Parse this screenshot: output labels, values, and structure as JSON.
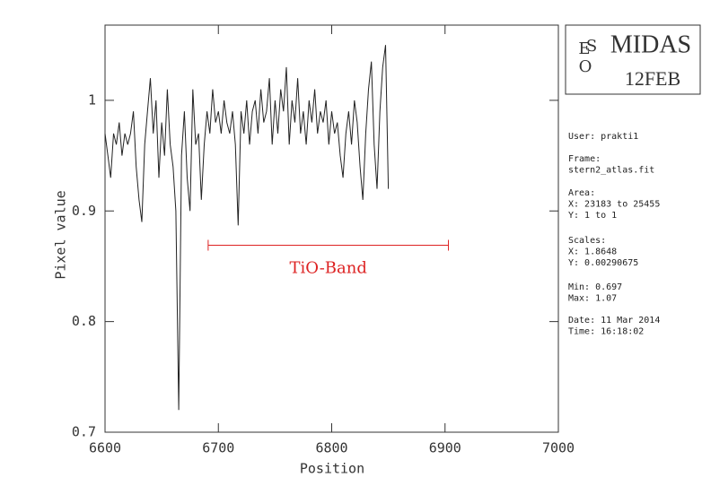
{
  "chart_data": {
    "type": "line",
    "xlabel": "Position",
    "ylabel": "Pixel value",
    "xlim": [
      6600,
      7000
    ],
    "ylim": [
      0.7,
      1.068
    ],
    "xticks": [
      6600,
      6700,
      6800,
      6900,
      7000
    ],
    "yticks": [
      0.7,
      0.8,
      0.9,
      1
    ],
    "color": "#222222",
    "x": [
      6600,
      6602.5,
      6605,
      6607.5,
      6610,
      6612.5,
      6615,
      6617.5,
      6620,
      6622.5,
      6625,
      6627.5,
      6630,
      6632.5,
      6635,
      6637.5,
      6640,
      6642.5,
      6645,
      6647.5,
      6650,
      6652.5,
      6655,
      6657.5,
      6660,
      6662.5,
      6665,
      6667.5,
      6670,
      6672.5,
      6675,
      6677.5,
      6680,
      6682.5,
      6685,
      6687.5,
      6690,
      6692.5,
      6695,
      6697.5,
      6700,
      6702.5,
      6705,
      6707.5,
      6710,
      6712.5,
      6715,
      6717.5,
      6720,
      6722.5,
      6725,
      6727.5,
      6730,
      6732.5,
      6735,
      6737.5,
      6740,
      6742.5,
      6745,
      6747.5,
      6750,
      6752.5,
      6755,
      6757.5,
      6760,
      6762.5,
      6765,
      6767.5,
      6770,
      6772.5,
      6775,
      6777.5,
      6780,
      6782.5,
      6785,
      6787.5,
      6790,
      6792.5,
      6795,
      6797.5,
      6800,
      6802.5,
      6805,
      6807.5,
      6810,
      6812.5,
      6815,
      6817.5,
      6820,
      6822.5,
      6825,
      6827.5,
      6830,
      6832.5,
      6835,
      6837.5,
      6840,
      6842.5,
      6845,
      6847.5,
      6850
    ],
    "values": [
      0.97,
      0.95,
      0.93,
      0.97,
      0.96,
      0.98,
      0.95,
      0.97,
      0.96,
      0.97,
      0.99,
      0.94,
      0.91,
      0.89,
      0.96,
      0.99,
      1.02,
      0.97,
      1.0,
      0.93,
      0.98,
      0.95,
      1.01,
      0.96,
      0.94,
      0.9,
      0.72,
      0.95,
      0.99,
      0.93,
      0.9,
      1.01,
      0.96,
      0.97,
      0.91,
      0.96,
      0.99,
      0.97,
      1.01,
      0.98,
      0.99,
      0.97,
      1.0,
      0.98,
      0.97,
      0.99,
      0.96,
      0.887,
      0.99,
      0.97,
      1.0,
      0.96,
      0.99,
      1.0,
      0.97,
      1.01,
      0.98,
      0.99,
      1.02,
      0.96,
      1.0,
      0.97,
      1.01,
      0.99,
      1.03,
      0.96,
      1.0,
      0.98,
      1.02,
      0.97,
      0.99,
      0.96,
      1.0,
      0.98,
      1.01,
      0.97,
      0.99,
      0.98,
      1.0,
      0.96,
      0.99,
      0.97,
      0.98,
      0.95,
      0.93,
      0.97,
      0.99,
      0.96,
      1.0,
      0.98,
      0.94,
      0.91,
      0.97,
      1.01,
      1.035,
      0.96,
      0.92,
      0.99,
      1.03,
      1.05,
      0.92
    ],
    "annotation": {
      "text": "TiO-Band",
      "x": [
        6691,
        6903
      ],
      "y": 0.869,
      "color": "#dd2222"
    },
    "logo": {
      "letters": [
        "E",
        "S",
        "O"
      ],
      "name": "MIDAS",
      "date": "12FEB"
    },
    "info": [
      [
        "User: prakti1"
      ],
      [
        "Frame:",
        "stern2_atlas.fit"
      ],
      [
        "Area:",
        "X: 23183 to 25455",
        "Y: 1 to 1"
      ],
      [
        "Scales:",
        "X: 1.8648",
        "Y: 0.00290675"
      ],
      [
        "Min: 0.697",
        "Max: 1.07"
      ],
      [
        "Date: 11 Mar 2014",
        "Time: 16:18:02"
      ]
    ]
  }
}
